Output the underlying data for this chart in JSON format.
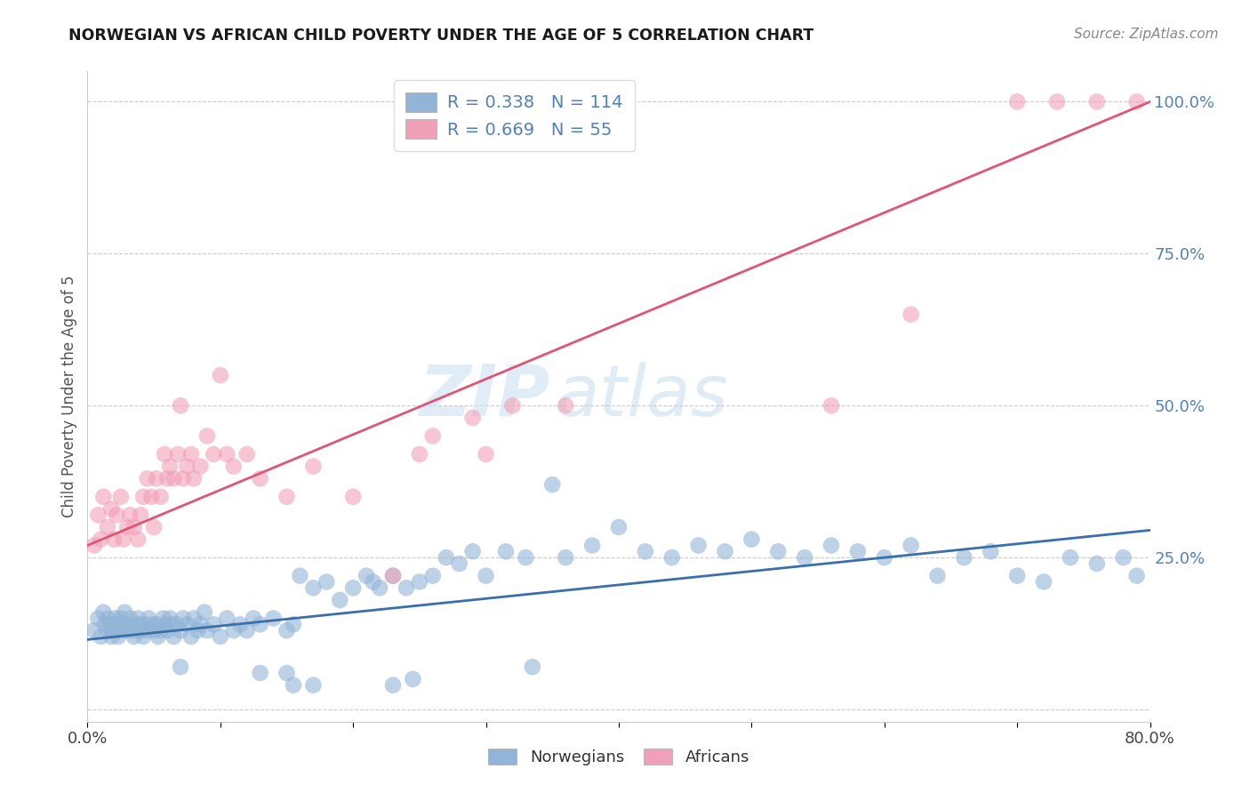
{
  "title": "NORWEGIAN VS AFRICAN CHILD POVERTY UNDER THE AGE OF 5 CORRELATION CHART",
  "source": "Source: ZipAtlas.com",
  "ylabel": "Child Poverty Under the Age of 5",
  "xlim": [
    0.0,
    0.8
  ],
  "ylim": [
    -0.02,
    1.05
  ],
  "norwegian_color": "#92b4d7",
  "african_color": "#f0a0b8",
  "norwegian_line_color": "#3a6faa",
  "african_line_color": "#e05575",
  "watermark_color": "#d8eef8",
  "tick_label_color": "#5080c0",
  "legend_r_norwegian": "R = 0.338",
  "legend_n_norwegian": "N = 114",
  "legend_r_african": "R = 0.669",
  "legend_n_african": "N = 55",
  "norw_line_x0": 0.0,
  "norw_line_y0": 0.115,
  "norw_line_x1": 0.8,
  "norw_line_y1": 0.295,
  "afr_line_x0": 0.0,
  "afr_line_y0": 0.27,
  "afr_line_x1": 0.8,
  "afr_line_y1": 1.0,
  "norw_x": [
    0.005,
    0.008,
    0.01,
    0.012,
    0.013,
    0.015,
    0.015,
    0.017,
    0.018,
    0.019,
    0.02,
    0.021,
    0.022,
    0.023,
    0.024,
    0.025,
    0.025,
    0.027,
    0.028,
    0.03,
    0.03,
    0.032,
    0.033,
    0.035,
    0.036,
    0.038,
    0.04,
    0.04,
    0.042,
    0.043,
    0.045,
    0.046,
    0.048,
    0.05,
    0.052,
    0.053,
    0.055,
    0.057,
    0.058,
    0.06,
    0.062,
    0.063,
    0.065,
    0.067,
    0.07,
    0.072,
    0.075,
    0.078,
    0.08,
    0.083,
    0.085,
    0.088,
    0.09,
    0.095,
    0.1,
    0.105,
    0.11,
    0.115,
    0.12,
    0.125,
    0.13,
    0.14,
    0.15,
    0.155,
    0.16,
    0.17,
    0.18,
    0.19,
    0.2,
    0.21,
    0.215,
    0.22,
    0.23,
    0.24,
    0.25,
    0.26,
    0.27,
    0.28,
    0.29,
    0.3,
    0.315,
    0.33,
    0.35,
    0.36,
    0.38,
    0.4,
    0.42,
    0.44,
    0.46,
    0.48,
    0.5,
    0.52,
    0.54,
    0.56,
    0.58,
    0.6,
    0.62,
    0.64,
    0.66,
    0.68,
    0.7,
    0.72,
    0.74,
    0.76,
    0.78,
    0.79,
    0.335,
    0.07,
    0.13,
    0.15,
    0.155,
    0.17,
    0.23,
    0.245
  ],
  "norw_y": [
    0.13,
    0.15,
    0.12,
    0.16,
    0.14,
    0.13,
    0.15,
    0.14,
    0.12,
    0.13,
    0.14,
    0.15,
    0.13,
    0.12,
    0.14,
    0.13,
    0.15,
    0.14,
    0.16,
    0.13,
    0.14,
    0.15,
    0.13,
    0.12,
    0.14,
    0.15,
    0.13,
    0.14,
    0.12,
    0.14,
    0.13,
    0.15,
    0.14,
    0.13,
    0.14,
    0.12,
    0.13,
    0.15,
    0.14,
    0.13,
    0.15,
    0.14,
    0.12,
    0.14,
    0.13,
    0.15,
    0.14,
    0.12,
    0.15,
    0.13,
    0.14,
    0.16,
    0.13,
    0.14,
    0.12,
    0.15,
    0.13,
    0.14,
    0.13,
    0.15,
    0.14,
    0.15,
    0.13,
    0.14,
    0.22,
    0.2,
    0.21,
    0.18,
    0.2,
    0.22,
    0.21,
    0.2,
    0.22,
    0.2,
    0.21,
    0.22,
    0.25,
    0.24,
    0.26,
    0.22,
    0.26,
    0.25,
    0.37,
    0.25,
    0.27,
    0.3,
    0.26,
    0.25,
    0.27,
    0.26,
    0.28,
    0.26,
    0.25,
    0.27,
    0.26,
    0.25,
    0.27,
    0.22,
    0.25,
    0.26,
    0.22,
    0.21,
    0.25,
    0.24,
    0.25,
    0.22,
    0.07,
    0.07,
    0.06,
    0.06,
    0.04,
    0.04,
    0.04,
    0.05
  ],
  "afr_x": [
    0.005,
    0.008,
    0.01,
    0.012,
    0.015,
    0.018,
    0.02,
    0.022,
    0.025,
    0.027,
    0.03,
    0.032,
    0.035,
    0.038,
    0.04,
    0.042,
    0.045,
    0.048,
    0.05,
    0.052,
    0.055,
    0.058,
    0.06,
    0.062,
    0.065,
    0.068,
    0.07,
    0.072,
    0.075,
    0.078,
    0.08,
    0.085,
    0.09,
    0.095,
    0.1,
    0.105,
    0.11,
    0.12,
    0.13,
    0.15,
    0.17,
    0.2,
    0.23,
    0.25,
    0.26,
    0.29,
    0.3,
    0.32,
    0.36,
    0.56,
    0.62,
    0.7,
    0.73,
    0.76,
    0.79
  ],
  "afr_y": [
    0.27,
    0.32,
    0.28,
    0.35,
    0.3,
    0.33,
    0.28,
    0.32,
    0.35,
    0.28,
    0.3,
    0.32,
    0.3,
    0.28,
    0.32,
    0.35,
    0.38,
    0.35,
    0.3,
    0.38,
    0.35,
    0.42,
    0.38,
    0.4,
    0.38,
    0.42,
    0.5,
    0.38,
    0.4,
    0.42,
    0.38,
    0.4,
    0.45,
    0.42,
    0.55,
    0.42,
    0.4,
    0.42,
    0.38,
    0.35,
    0.4,
    0.35,
    0.22,
    0.42,
    0.45,
    0.48,
    0.42,
    0.5,
    0.5,
    0.5,
    0.65,
    1.0,
    1.0,
    1.0,
    1.0
  ]
}
